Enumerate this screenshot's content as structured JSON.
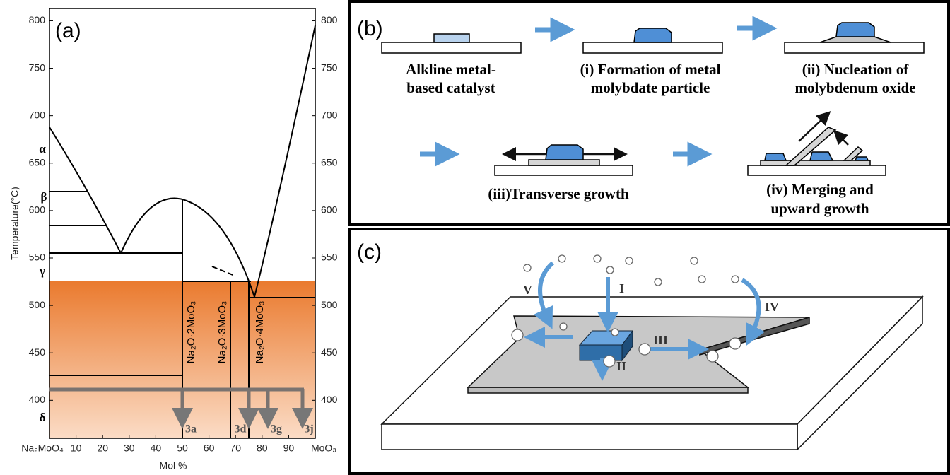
{
  "panel_a": {
    "label": "(a)",
    "x_label": "Mol %",
    "y_label": "Temperature(°C)",
    "xlim": [
      0,
      100
    ],
    "ylim": [
      360,
      813
    ],
    "xticks": [
      {
        "value": 0,
        "label": "Na₂MoO₄"
      },
      10,
      20,
      30,
      40,
      50,
      60,
      70,
      80,
      90,
      {
        "value": 100,
        "label": "MoO₃"
      }
    ],
    "yticks": [
      400,
      450,
      500,
      550,
      600,
      650,
      700,
      750,
      800
    ],
    "phases": [
      "α",
      "β",
      "γ",
      "δ"
    ],
    "compounds": [
      "Na₂O·2MoO₃",
      "Na₂O·3MoO₃",
      "Na₂O·4MoO₃"
    ],
    "samples": [
      "3a",
      "3d",
      "3g",
      "3j"
    ]
  },
  "panel_b": {
    "label": "(b)",
    "steps": [
      [
        "Alkline metal-",
        "based catalyst"
      ],
      [
        "(i) Formation of metal",
        "molybdate particle"
      ],
      [
        "(ii) Nucleation of",
        "molybdenum oxide"
      ],
      [
        "(iii)Transverse growth"
      ],
      [
        "(iv) Merging and",
        "upward growth"
      ]
    ]
  },
  "panel_c": {
    "label": "(c)",
    "pathways": [
      "I",
      "II",
      "III",
      "IV",
      "V"
    ]
  }
}
